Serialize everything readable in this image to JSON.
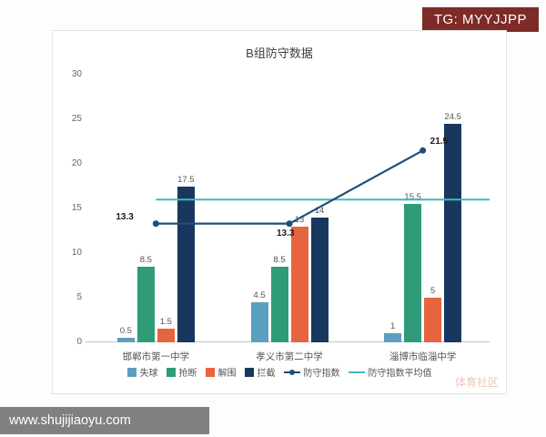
{
  "badge": {
    "label": "TG: MYYJJPP",
    "bg_color": "#7d2b26"
  },
  "watermark_bar": {
    "label": "www.shujijiaoyu.com"
  },
  "chart_data": {
    "type": "bar",
    "title": "B组防守数据",
    "categories": [
      "邯郸市第一中学",
      "孝义市第二中学",
      "淄博市临淄中学"
    ],
    "bar_series": [
      {
        "name": "失球",
        "color": "#5b9fbf",
        "values": [
          0.5,
          4.5,
          1
        ]
      },
      {
        "name": "抢断",
        "color": "#2f9b78",
        "values": [
          8.5,
          8.5,
          15.5
        ]
      },
      {
        "name": "解围",
        "color": "#e8643f",
        "values": [
          1.5,
          13,
          5
        ]
      },
      {
        "name": "拦截",
        "color": "#17375e",
        "values": [
          17.5,
          14,
          24.5
        ]
      }
    ],
    "line_series": {
      "name": "防守指数",
      "color": "#1f4e79",
      "values": [
        13.3,
        13.3,
        21.5
      ],
      "point_labels": [
        "13.3",
        "13.3",
        "21.5"
      ]
    },
    "avg_line": {
      "name": "防守指数平均值",
      "color": "#45b8ba",
      "value": 16
    },
    "ylim": [
      0,
      30
    ],
    "yticks": [
      0,
      5,
      10,
      15,
      20,
      25,
      30
    ],
    "grid": false,
    "legend_position": "bottom",
    "corner_watermark": "体育社区"
  }
}
